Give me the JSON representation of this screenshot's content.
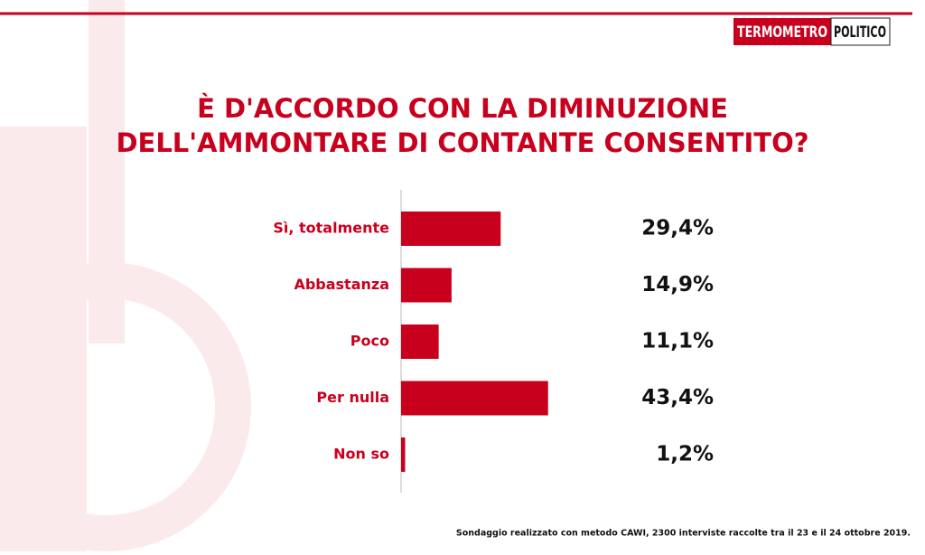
{
  "chart_data": {
    "type": "hbar",
    "logo": {
      "left": "TERMOMETRO",
      "right": "POLITICO"
    },
    "title": [
      "È D'ACCORDO CON LA DIMINUZIONE",
      "DELL'AMMONTARE DI CONTANTE CONSENTITO?"
    ],
    "categories": [
      "Sì, totalmente",
      "Abbastanza",
      "Poco",
      "Per nulla",
      "Non so"
    ],
    "values": [
      29.4,
      14.9,
      11.1,
      43.4,
      1.2
    ],
    "value_labels": [
      "29,4%",
      "14,9%",
      "11,1%",
      "43,4%",
      "1,2%"
    ],
    "color": "#c8001e",
    "note": "Sondaggio realizzato con metodo CAWI, 2300 interviste raccolte tra il 23 e il 24 ottobre 2019."
  }
}
